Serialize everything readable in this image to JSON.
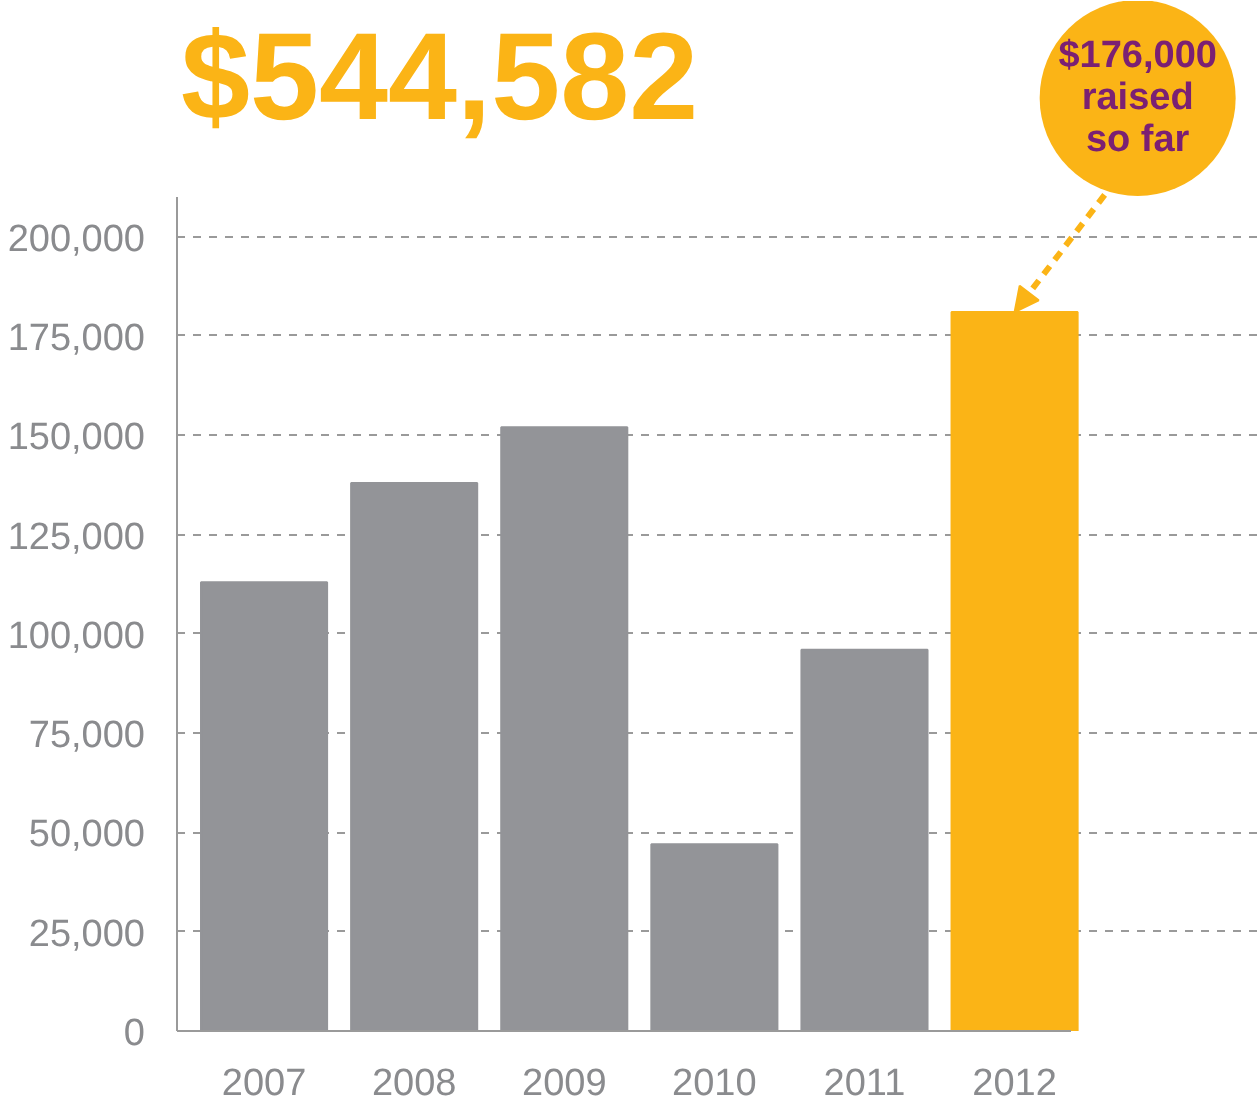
{
  "chart_data": {
    "type": "bar",
    "title": "$544,582",
    "categories": [
      "2007",
      "2008",
      "2009",
      "2010",
      "2011",
      "2012"
    ],
    "values": [
      113000,
      138000,
      152000,
      47000,
      96000,
      181000
    ],
    "colors": [
      "#939498",
      "#939498",
      "#939498",
      "#939498",
      "#939498",
      "#fbb416"
    ],
    "ylim": [
      0,
      210000
    ],
    "yticks": [
      {
        "value": 0,
        "label": "0"
      },
      {
        "value": 25000,
        "label": "25,000"
      },
      {
        "value": 50000,
        "label": "50,000"
      },
      {
        "value": 75000,
        "label": "75,000"
      },
      {
        "value": 100000,
        "label": "100,000"
      },
      {
        "value": 125000,
        "label": "125,000"
      },
      {
        "value": 150000,
        "label": "150,000"
      },
      {
        "value": 175000,
        "label": "175,000"
      },
      {
        "value": 200000,
        "label": "200,000"
      }
    ],
    "grid": "y",
    "annotations": [
      {
        "text": "$176,000\nraised\nso far",
        "x": "2012",
        "y": 181000
      }
    ]
  }
}
